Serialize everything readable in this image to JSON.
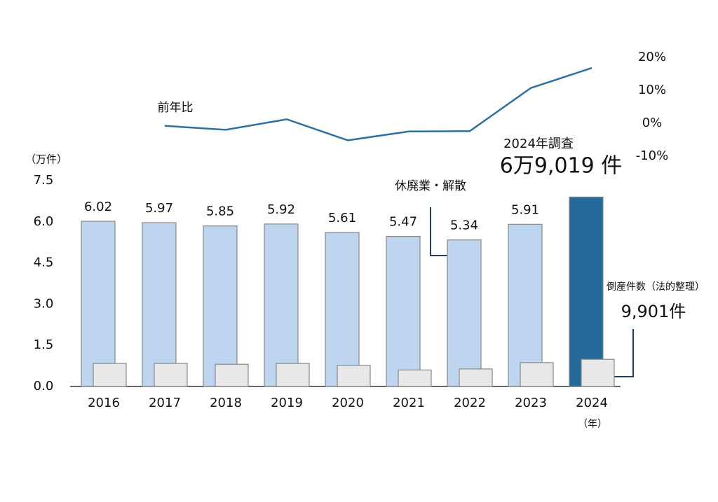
{
  "chart_data": {
    "type": "bar",
    "categories": [
      "2016",
      "2017",
      "2018",
      "2019",
      "2020",
      "2021",
      "2022",
      "2023",
      "2024"
    ],
    "series": [
      {
        "name": "休廃業・解散",
        "color": "#bdd5ef",
        "colors": [
          "#bdd5ef",
          "#bdd5ef",
          "#bdd5ef",
          "#bdd5ef",
          "#bdd5ef",
          "#bdd5ef",
          "#bdd5ef",
          "#bdd5ef",
          "#236a9a"
        ],
        "values": [
          6.02,
          5.97,
          5.85,
          5.92,
          5.61,
          5.47,
          5.34,
          5.91,
          6.9019
        ],
        "value_labels": [
          "6.02",
          "5.97",
          "5.85",
          "5.92",
          "5.61",
          "5.47",
          "5.34",
          "5.91",
          "6万9,019 件"
        ]
      },
      {
        "name": "倒産件数（法的整理）",
        "color": "#e8e8e8",
        "values": [
          0.84,
          0.84,
          0.81,
          0.84,
          0.77,
          0.6,
          0.64,
          0.87,
          0.9901
        ],
        "value_labels": [
          null,
          null,
          null,
          null,
          null,
          null,
          null,
          null,
          "9,901件"
        ]
      },
      {
        "name": "前年比",
        "type": "line",
        "color": "#2f6f9f",
        "axis": "y2",
        "values": [
          null,
          -0.8,
          -2.0,
          1.2,
          -5.2,
          -2.5,
          -2.4,
          10.7,
          16.8
        ]
      }
    ],
    "ylabel": "（万件）",
    "xlabel": "（年）",
    "annotations": [
      "2024年調査"
    ],
    "ylim": [
      0,
      7.5
    ],
    "yticks": [
      {
        "value": 0,
        "label": "0.0"
      },
      1.5,
      {
        "value": 3,
        "label": "3.0"
      },
      4.5,
      {
        "value": 6,
        "label": "6.0"
      },
      7.5
    ],
    "y2lim": [
      -10,
      20
    ],
    "y2ticks": [
      {
        "value": -10,
        "label": "-10%"
      },
      {
        "value": 0,
        "label": "0%"
      },
      {
        "value": 10,
        "label": "10%"
      },
      {
        "value": 20,
        "label": "20%"
      }
    ]
  }
}
